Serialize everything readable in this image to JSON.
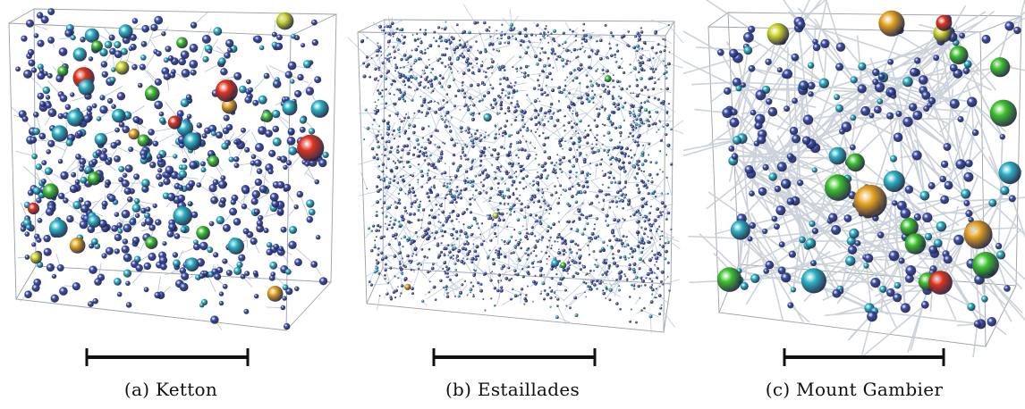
{
  "panels": [
    {
      "id": "a",
      "label": "(a)",
      "name": "Ketton",
      "cube": {
        "front": [
          [
            10,
            26
          ],
          [
            325,
            40
          ],
          [
            320,
            370
          ],
          [
            18,
            335
          ]
        ],
        "back": [
          [
            38,
            10
          ],
          [
            376,
            16
          ],
          [
            370,
            316
          ],
          [
            40,
            298
          ]
        ]
      },
      "scalebar": {
        "x1": 96,
        "x2": 278
      },
      "style": {
        "pores": 620,
        "throat_color": "#a9b8c8",
        "throats": 260,
        "seed": 11,
        "pore_size": [
          2.6,
          5.0
        ],
        "large": 40,
        "bg_density": "medium"
      }
    },
    {
      "id": "b",
      "label": "(b)",
      "name": "Estaillades",
      "cube": {
        "front": [
          [
            18,
            36
          ],
          [
            362,
            40
          ],
          [
            360,
            372
          ],
          [
            28,
            340
          ]
        ],
        "back": [
          [
            48,
            22
          ],
          [
            372,
            24
          ],
          [
            368,
            318
          ],
          [
            46,
            300
          ]
        ]
      },
      "scalebar": {
        "x1": 102,
        "x2": 284
      },
      "style": {
        "pores": 2600,
        "throat_color": "#b7c2cf",
        "throats": 900,
        "seed": 27,
        "pore_size": [
          0.8,
          2.0
        ],
        "large": 6,
        "bg_density": "dense"
      }
    },
    {
      "id": "c",
      "label": "(c)",
      "name": "Mount Gambier",
      "cube": {
        "front": [
          [
            28,
            30
          ],
          [
            332,
            36
          ],
          [
            338,
            388
          ],
          [
            40,
            350
          ]
        ],
        "back": [
          [
            50,
            14
          ],
          [
            378,
            18
          ],
          [
            372,
            320
          ],
          [
            62,
            296
          ]
        ]
      },
      "scalebar": {
        "x1": 112,
        "x2": 292
      },
      "style": {
        "pores": 260,
        "throat_color": "#c4cbd3",
        "throats": 520,
        "seed": 43,
        "pore_size": [
          3.0,
          6.0
        ],
        "large": 22,
        "bg_density": "sparse"
      }
    }
  ],
  "palette": {
    "small": "#3a4ea8",
    "cyan": "#2ab3c4",
    "green": "#3cc22c",
    "yellow": "#c9d42a",
    "orange": "#e4a21e",
    "red": "#e0341e",
    "scalebar": "#111111"
  }
}
